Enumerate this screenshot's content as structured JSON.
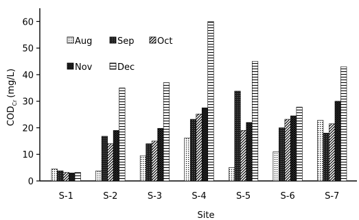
{
  "chart_data": {
    "type": "bar",
    "title": "",
    "xlabel": "Site",
    "ylabel_main": "COD",
    "ylabel_sub": "Cr",
    "ylabel_unit": "(mg/L)",
    "ylim": [
      0,
      65
    ],
    "yticks": [
      0,
      10,
      20,
      30,
      40,
      50,
      60
    ],
    "grid": false,
    "legend_position": "top-left",
    "categories": [
      "S-1",
      "S-2",
      "S-3",
      "S-4",
      "S-5",
      "S-6",
      "S-7"
    ],
    "series": [
      {
        "name": "Aug",
        "pattern": "dots",
        "values": [
          4.5,
          3.8,
          9.5,
          16.2,
          5.0,
          11.0,
          22.8
        ]
      },
      {
        "name": "Sep",
        "pattern": "solid",
        "values": [
          3.8,
          16.8,
          14.0,
          23.2,
          33.8,
          20.0,
          18.0
        ]
      },
      {
        "name": "Oct",
        "pattern": "diagonal",
        "values": [
          3.2,
          14.0,
          15.0,
          25.2,
          19.0,
          23.2,
          21.5
        ]
      },
      {
        "name": "Nov",
        "pattern": "crosshatch",
        "values": [
          3.0,
          19.0,
          19.8,
          27.5,
          22.0,
          24.5,
          30.0
        ]
      },
      {
        "name": "Dec",
        "pattern": "horizontal",
        "values": [
          3.2,
          35.0,
          37.0,
          60.0,
          45.0,
          27.8,
          43.0
        ]
      }
    ]
  }
}
